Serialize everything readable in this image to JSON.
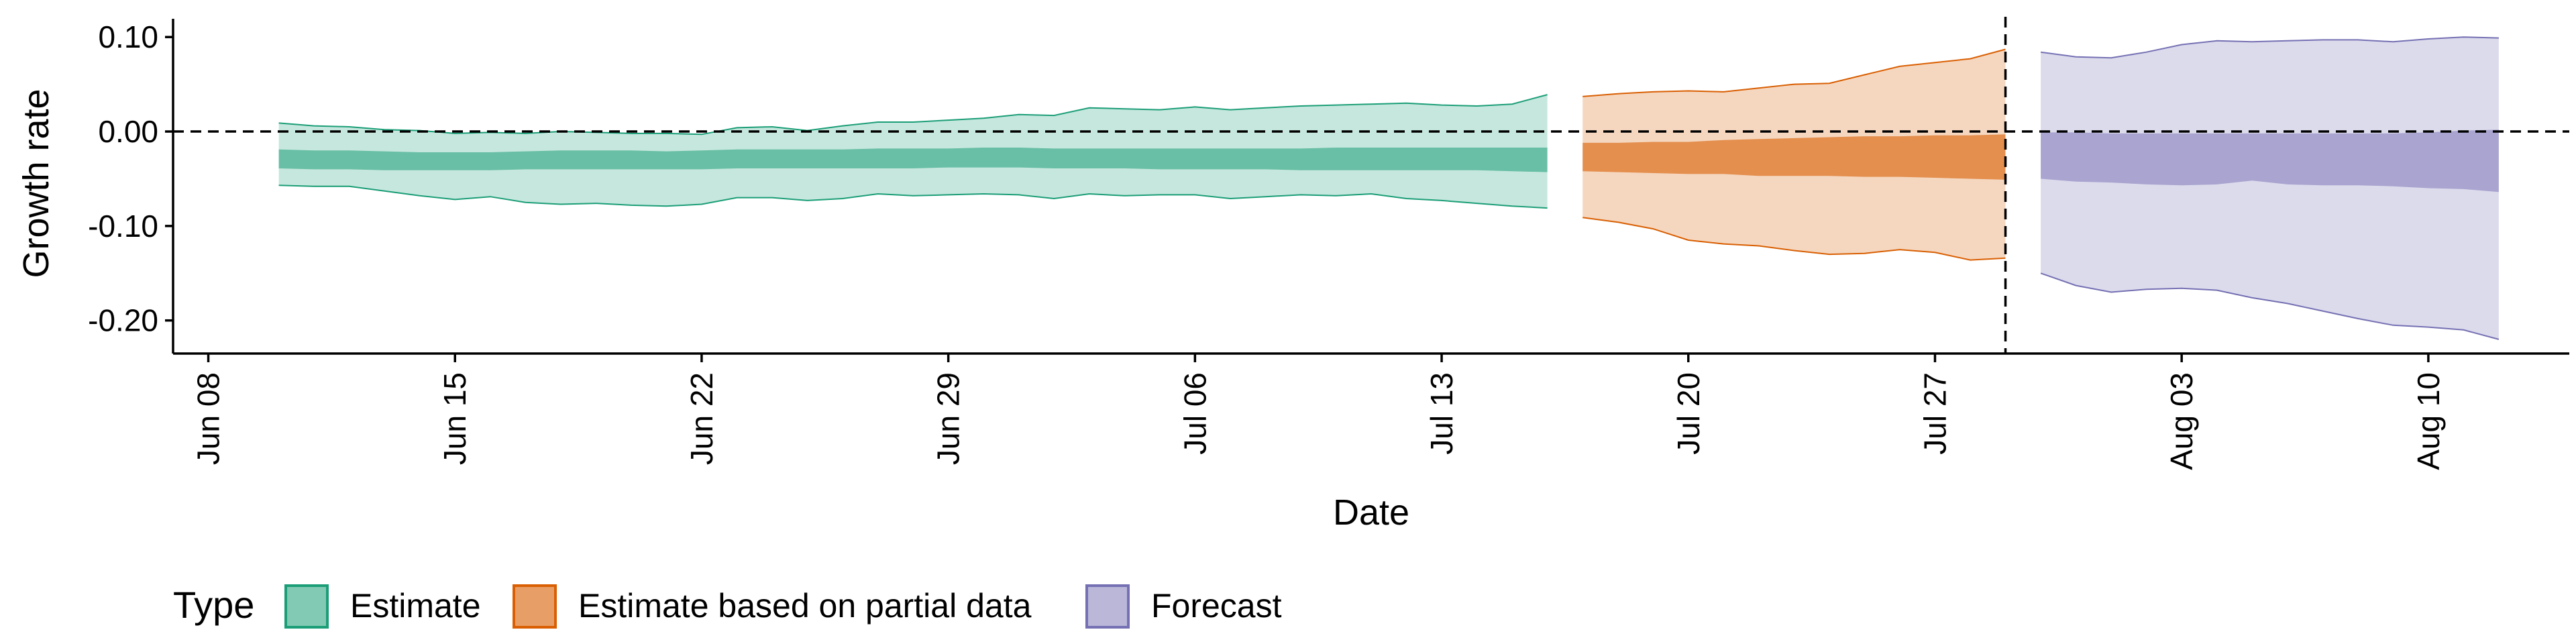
{
  "chart_data": {
    "type": "area",
    "xlabel": "Date",
    "ylabel": "Growth rate",
    "ylim": [
      -0.235,
      0.125
    ],
    "y_ticks": [
      {
        "value": 0.1,
        "label": "0.10"
      },
      {
        "value": 0.0,
        "label": "0.00"
      },
      {
        "value": -0.1,
        "label": "-0.10"
      },
      {
        "value": -0.2,
        "label": "-0.20"
      }
    ],
    "x_ticks": [
      {
        "date": "2020-06-08",
        "label": "Jun 08"
      },
      {
        "date": "2020-06-15",
        "label": "Jun 15"
      },
      {
        "date": "2020-06-22",
        "label": "Jun 22"
      },
      {
        "date": "2020-06-29",
        "label": "Jun 29"
      },
      {
        "date": "2020-07-06",
        "label": "Jul 06"
      },
      {
        "date": "2020-07-13",
        "label": "Jul 13"
      },
      {
        "date": "2020-07-20",
        "label": "Jul 20"
      },
      {
        "date": "2020-07-27",
        "label": "Jul 27"
      },
      {
        "date": "2020-08-03",
        "label": "Aug 03"
      },
      {
        "date": "2020-08-10",
        "label": "Aug 10"
      }
    ],
    "xlim": [
      "2020-06-07",
      "2020-08-14"
    ],
    "reference_lines": {
      "horizontal_y": 0,
      "vertical_date": "2020-07-29"
    },
    "grid": false,
    "legend": {
      "title": "Type",
      "position": "bottom-left"
    },
    "series": [
      {
        "name": "Estimate",
        "fill_color": "#1b9e77",
        "outer_opacity": 0.25,
        "inner_opacity": 0.55,
        "dates": [
          "2020-06-10",
          "2020-06-11",
          "2020-06-12",
          "2020-06-13",
          "2020-06-14",
          "2020-06-15",
          "2020-06-16",
          "2020-06-17",
          "2020-06-18",
          "2020-06-19",
          "2020-06-20",
          "2020-06-21",
          "2020-06-22",
          "2020-06-23",
          "2020-06-24",
          "2020-06-25",
          "2020-06-26",
          "2020-06-27",
          "2020-06-28",
          "2020-06-29",
          "2020-06-30",
          "2020-07-01",
          "2020-07-02",
          "2020-07-03",
          "2020-07-04",
          "2020-07-05",
          "2020-07-06",
          "2020-07-07",
          "2020-07-08",
          "2020-07-09",
          "2020-07-10",
          "2020-07-11",
          "2020-07-12",
          "2020-07-13",
          "2020-07-14",
          "2020-07-15",
          "2020-07-16"
        ],
        "outer_upper": [
          0.009,
          0.006,
          0.005,
          0.002,
          0.001,
          -0.002,
          -0.001,
          -0.002,
          0.0,
          -0.001,
          -0.002,
          -0.002,
          -0.003,
          0.004,
          0.005,
          0.001,
          0.006,
          0.01,
          0.01,
          0.012,
          0.014,
          0.018,
          0.017,
          0.025,
          0.024,
          0.023,
          0.026,
          0.023,
          0.025,
          0.027,
          0.028,
          0.029,
          0.03,
          0.028,
          0.027,
          0.029,
          0.039
        ],
        "outer_lower": [
          -0.057,
          -0.058,
          -0.058,
          -0.063,
          -0.068,
          -0.072,
          -0.069,
          -0.075,
          -0.077,
          -0.076,
          -0.078,
          -0.079,
          -0.077,
          -0.07,
          -0.07,
          -0.073,
          -0.071,
          -0.066,
          -0.068,
          -0.067,
          -0.066,
          -0.067,
          -0.071,
          -0.066,
          -0.068,
          -0.067,
          -0.067,
          -0.071,
          -0.069,
          -0.067,
          -0.068,
          -0.066,
          -0.071,
          -0.073,
          -0.076,
          -0.079,
          -0.081
        ],
        "inner_upper": [
          -0.019,
          -0.02,
          -0.02,
          -0.021,
          -0.022,
          -0.022,
          -0.022,
          -0.021,
          -0.02,
          -0.02,
          -0.02,
          -0.021,
          -0.02,
          -0.019,
          -0.019,
          -0.019,
          -0.019,
          -0.018,
          -0.018,
          -0.018,
          -0.017,
          -0.017,
          -0.018,
          -0.018,
          -0.018,
          -0.018,
          -0.018,
          -0.018,
          -0.018,
          -0.018,
          -0.017,
          -0.017,
          -0.017,
          -0.017,
          -0.017,
          -0.017,
          -0.017
        ],
        "inner_lower": [
          -0.039,
          -0.04,
          -0.04,
          -0.041,
          -0.041,
          -0.041,
          -0.041,
          -0.04,
          -0.04,
          -0.04,
          -0.04,
          -0.04,
          -0.04,
          -0.039,
          -0.039,
          -0.039,
          -0.039,
          -0.039,
          -0.039,
          -0.038,
          -0.038,
          -0.038,
          -0.039,
          -0.039,
          -0.039,
          -0.04,
          -0.04,
          -0.04,
          -0.04,
          -0.041,
          -0.041,
          -0.041,
          -0.041,
          -0.041,
          -0.041,
          -0.042,
          -0.043
        ]
      },
      {
        "name": "Estimate based on partial data",
        "fill_color": "#d95f02",
        "outer_opacity": 0.25,
        "inner_opacity": 0.6,
        "dates": [
          "2020-07-17",
          "2020-07-18",
          "2020-07-19",
          "2020-07-20",
          "2020-07-21",
          "2020-07-22",
          "2020-07-23",
          "2020-07-24",
          "2020-07-25",
          "2020-07-26",
          "2020-07-27",
          "2020-07-28",
          "2020-07-29"
        ],
        "outer_upper": [
          0.037,
          0.04,
          0.042,
          0.043,
          0.042,
          0.046,
          0.05,
          0.051,
          0.06,
          0.069,
          0.073,
          0.077,
          0.087
        ],
        "outer_lower": [
          -0.091,
          -0.096,
          -0.103,
          -0.115,
          -0.119,
          -0.121,
          -0.126,
          -0.13,
          -0.129,
          -0.125,
          -0.128,
          -0.136,
          -0.134
        ],
        "inner_upper": [
          -0.012,
          -0.012,
          -0.011,
          -0.011,
          -0.009,
          -0.008,
          -0.007,
          -0.006,
          -0.005,
          -0.005,
          -0.004,
          -0.004,
          -0.003
        ],
        "inner_lower": [
          -0.042,
          -0.043,
          -0.044,
          -0.045,
          -0.045,
          -0.047,
          -0.047,
          -0.047,
          -0.048,
          -0.048,
          -0.049,
          -0.05,
          -0.051
        ]
      },
      {
        "name": "Forecast",
        "fill_color": "#7570b3",
        "outer_opacity": 0.25,
        "inner_opacity": 0.5,
        "dates": [
          "2020-07-30",
          "2020-07-31",
          "2020-08-01",
          "2020-08-02",
          "2020-08-03",
          "2020-08-04",
          "2020-08-05",
          "2020-08-06",
          "2020-08-07",
          "2020-08-08",
          "2020-08-09",
          "2020-08-10",
          "2020-08-11",
          "2020-08-12"
        ],
        "outer_upper": [
          0.084,
          0.079,
          0.078,
          0.084,
          0.092,
          0.096,
          0.095,
          0.096,
          0.097,
          0.097,
          0.095,
          0.098,
          0.1,
          0.099
        ],
        "outer_lower": [
          -0.15,
          -0.163,
          -0.17,
          -0.167,
          -0.166,
          -0.168,
          -0.176,
          -0.182,
          -0.19,
          -0.198,
          -0.205,
          -0.207,
          -0.21,
          -0.22
        ],
        "inner_upper": [
          -0.001,
          -0.001,
          -0.002,
          -0.002,
          -0.002,
          -0.002,
          -0.002,
          -0.002,
          -0.002,
          -0.002,
          -0.002,
          -0.001,
          0.001,
          0.002
        ],
        "inner_lower": [
          -0.05,
          -0.053,
          -0.054,
          -0.056,
          -0.057,
          -0.056,
          -0.052,
          -0.056,
          -0.057,
          -0.057,
          -0.058,
          -0.06,
          -0.061,
          -0.064
        ]
      }
    ]
  }
}
